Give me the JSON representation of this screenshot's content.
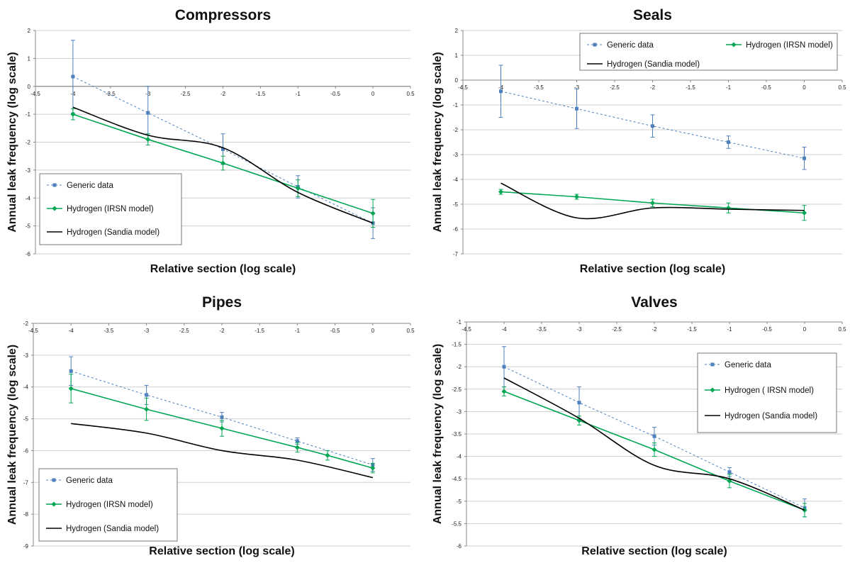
{
  "chart_data": [
    {
      "type": "line",
      "title": "Compressors",
      "xlabel": "Relative section (log scale)",
      "ylabel": "Annual leak frequency (log scale)",
      "xlim": [
        -4.5,
        0.5
      ],
      "ylim": [
        -6,
        2
      ],
      "xticks": [
        "-4.5",
        "-4",
        "-3.5",
        "-3",
        "-2.5",
        "-2",
        "-1.5",
        "-1",
        "-0.5",
        "0",
        "0.5"
      ],
      "yticks": [
        "2",
        "1",
        "0",
        "-1",
        "-2",
        "-3",
        "-4",
        "-5",
        "-6"
      ],
      "grid": "horizontal",
      "legend": "lower-left",
      "series": [
        {
          "name": "Generic data",
          "style": "dashed-square",
          "color": "#4F81BD",
          "x": [
            -4,
            -3,
            -2,
            -1,
            0
          ],
          "y": [
            0.35,
            -0.95,
            -2.25,
            -3.6,
            -4.9
          ],
          "err": [
            1.3,
            0.95,
            0.55,
            0.4,
            0.55
          ]
        },
        {
          "name": "Hydrogen (IRSN model)",
          "style": "solid-diamond",
          "color": "#00A651",
          "x": [
            -4,
            -3,
            -2,
            -1,
            0
          ],
          "y": [
            -1.0,
            -1.9,
            -2.75,
            -3.65,
            -4.55
          ],
          "err": [
            0.2,
            0.2,
            0.25,
            0.3,
            0.5
          ]
        },
        {
          "name": "Hydrogen (Sandia model)",
          "style": "solid",
          "color": "#000000",
          "x": [
            -4,
            -3,
            -2,
            -1,
            0
          ],
          "y": [
            -0.75,
            -1.75,
            -2.2,
            -3.8,
            -4.9
          ]
        }
      ]
    },
    {
      "type": "line",
      "title": "Seals",
      "xlabel": "Relative section (log scale)",
      "ylabel": "Annual leak frequency (log scale)",
      "xlim": [
        -4.5,
        0.5
      ],
      "ylim": [
        -7,
        2
      ],
      "xticks": [
        "-4.5",
        "-4",
        "-3.5",
        "-3",
        "-2.5",
        "-2",
        "-1.5",
        "-1",
        "-0.5",
        "0",
        "0.5"
      ],
      "yticks": [
        "2",
        "1",
        "0",
        "-1",
        "-2",
        "-3",
        "-4",
        "-5",
        "-6",
        "-7"
      ],
      "grid": "horizontal",
      "legend": "top",
      "series": [
        {
          "name": "Generic data",
          "style": "dashed-square",
          "color": "#4F81BD",
          "x": [
            -4,
            -3,
            -2,
            -1,
            0
          ],
          "y": [
            -0.45,
            -1.15,
            -1.85,
            -2.5,
            -3.15
          ],
          "err": [
            1.05,
            0.8,
            0.45,
            0.25,
            0.45
          ]
        },
        {
          "name": "Hydrogen (IRSN model)",
          "style": "solid-diamond",
          "color": "#00A651",
          "x": [
            -4,
            -3,
            -2,
            -1,
            0
          ],
          "y": [
            -4.5,
            -4.7,
            -4.95,
            -5.15,
            -5.35
          ],
          "err": [
            0.1,
            0.1,
            0.15,
            0.2,
            0.3
          ]
        },
        {
          "name": "Hydrogen (Sandia model)",
          "style": "solid",
          "color": "#000000",
          "x": [
            -4,
            -3,
            -2,
            -1,
            0
          ],
          "y": [
            -4.15,
            -5.55,
            -5.15,
            -5.2,
            -5.25
          ]
        }
      ]
    },
    {
      "type": "line",
      "title": "Pipes",
      "xlabel": "Relative section (log scale)",
      "ylabel": "Annual leak frequency (log scale)",
      "xlim": [
        -4.5,
        0.5
      ],
      "ylim": [
        -9,
        -2
      ],
      "xticks": [
        "-4.5",
        "-4",
        "-3.5",
        "-3",
        "-2.5",
        "-2",
        "-1.5",
        "-1",
        "-0.5",
        "0",
        "0.5"
      ],
      "yticks": [
        "-2",
        "-3",
        "-4",
        "-5",
        "-6",
        "-7",
        "-8",
        "-9"
      ],
      "grid": "horizontal",
      "legend": "lower-left",
      "series": [
        {
          "name": "Generic data",
          "style": "dashed-square",
          "color": "#4F81BD",
          "x": [
            -4,
            -3,
            -2,
            -1,
            0
          ],
          "y": [
            -3.5,
            -4.25,
            -4.95,
            -5.7,
            -6.45
          ],
          "err": [
            0.45,
            0.3,
            0.15,
            0.1,
            0.2
          ]
        },
        {
          "name": "Hydrogen (IRSN model)",
          "style": "solid-diamond",
          "color": "#00A651",
          "x": [
            -4,
            -3,
            -2,
            -1,
            -0.6,
            0
          ],
          "y": [
            -4.05,
            -4.7,
            -5.3,
            -5.9,
            -6.15,
            -6.55
          ],
          "err": [
            0.45,
            0.35,
            0.25,
            0.15,
            0.15,
            0.15
          ]
        },
        {
          "name": "Hydrogen (Sandia model)",
          "style": "solid",
          "color": "#000000",
          "x": [
            -4,
            -3,
            -2,
            -1,
            0
          ],
          "y": [
            -5.15,
            -5.45,
            -6.0,
            -6.3,
            -6.85
          ]
        }
      ]
    },
    {
      "type": "line",
      "title": "Valves",
      "xlabel": "Relative section (log scale)",
      "ylabel": "Annual leak frequency (log scale)",
      "xlim": [
        -4.5,
        0.5
      ],
      "ylim": [
        -6,
        -1
      ],
      "xticks": [
        "-4.5",
        "-4",
        "-3.5",
        "-3",
        "-2.5",
        "-2",
        "-1.5",
        "-1",
        "-0.5",
        "0",
        "0.5"
      ],
      "yticks": [
        "-1",
        "-1.5",
        "-2",
        "-2.5",
        "-3",
        "-3.5",
        "-4",
        "-4.5",
        "-5",
        "-5.5",
        "-6"
      ],
      "grid": "horizontal",
      "legend": "right",
      "series": [
        {
          "name": "Generic data",
          "style": "dashed-square",
          "color": "#4F81BD",
          "x": [
            -4,
            -3,
            -2,
            -1,
            0
          ],
          "y": [
            -2.0,
            -2.8,
            -3.55,
            -4.35,
            -5.15
          ],
          "err": [
            0.45,
            0.35,
            0.2,
            0.1,
            0.2
          ]
        },
        {
          "name": "Hydrogen ( IRSN model)",
          "style": "solid-diamond",
          "color": "#00A651",
          "x": [
            -4,
            -3,
            -2,
            -1,
            0
          ],
          "y": [
            -2.55,
            -3.2,
            -3.85,
            -4.55,
            -5.2
          ],
          "err": [
            0.1,
            0.1,
            0.15,
            0.15,
            0.15
          ]
        },
        {
          "name": "Hydrogen (Sandia model)",
          "style": "solid",
          "color": "#000000",
          "x": [
            -4,
            -3,
            -2,
            -1,
            0
          ],
          "y": [
            -2.25,
            -3.15,
            -4.2,
            -4.5,
            -5.2
          ]
        }
      ]
    }
  ]
}
